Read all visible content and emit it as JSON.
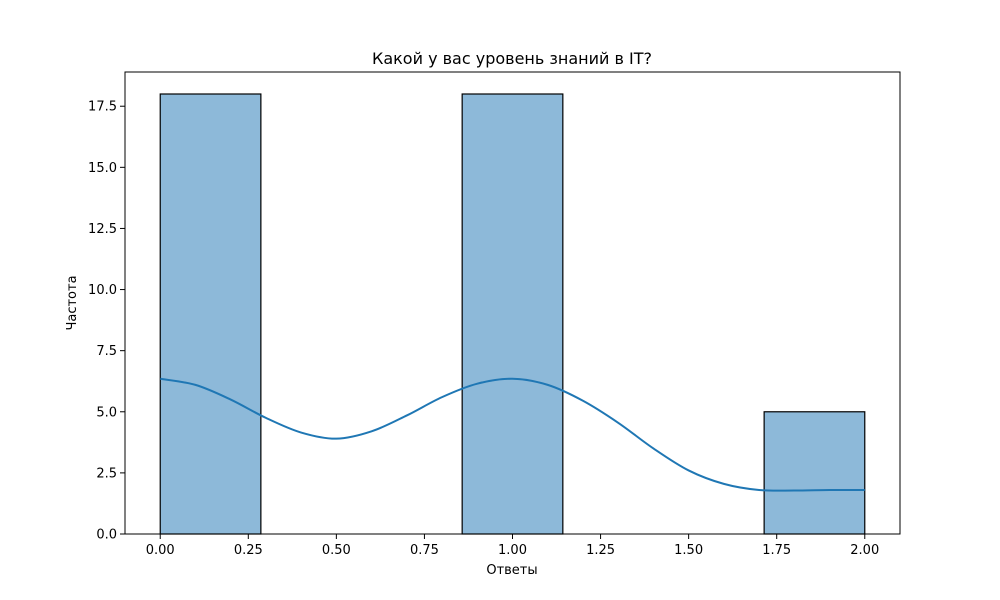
{
  "chart_data": {
    "type": "bar",
    "title": "Какой у вас уровень знаний в IT?",
    "xlabel": "Ответы",
    "ylabel": "Частота",
    "xlim": [
      -0.1,
      2.1
    ],
    "ylim": [
      0,
      18.9
    ],
    "xticks": [
      "0.00",
      "0.25",
      "0.50",
      "0.75",
      "1.00",
      "1.25",
      "1.50",
      "1.75",
      "2.00"
    ],
    "yticks": [
      "0.0",
      "2.5",
      "5.0",
      "7.5",
      "10.0",
      "12.5",
      "15.0",
      "17.5"
    ],
    "grid": false,
    "bins": [
      {
        "x0": 0.0,
        "x1": 0.2857,
        "count": 18
      },
      {
        "x0": 0.8571,
        "x1": 1.1429,
        "count": 18
      },
      {
        "x0": 1.7143,
        "x1": 2.0,
        "count": 5
      }
    ],
    "kde": {
      "x": [
        0.0,
        0.1,
        0.2,
        0.3,
        0.4,
        0.5,
        0.6,
        0.7,
        0.8,
        0.9,
        1.0,
        1.1,
        1.2,
        1.3,
        1.4,
        1.5,
        1.6,
        1.7,
        1.8,
        1.9,
        2.0
      ],
      "y": [
        6.35,
        6.1,
        5.5,
        4.75,
        4.15,
        3.9,
        4.2,
        4.85,
        5.6,
        6.15,
        6.35,
        6.1,
        5.45,
        4.55,
        3.5,
        2.6,
        2.05,
        1.8,
        1.78,
        1.8,
        1.8
      ]
    },
    "colors": {
      "bar_fill": "#8db9d9",
      "bar_edge": "#000000",
      "kde_line": "#1f77b4"
    }
  }
}
